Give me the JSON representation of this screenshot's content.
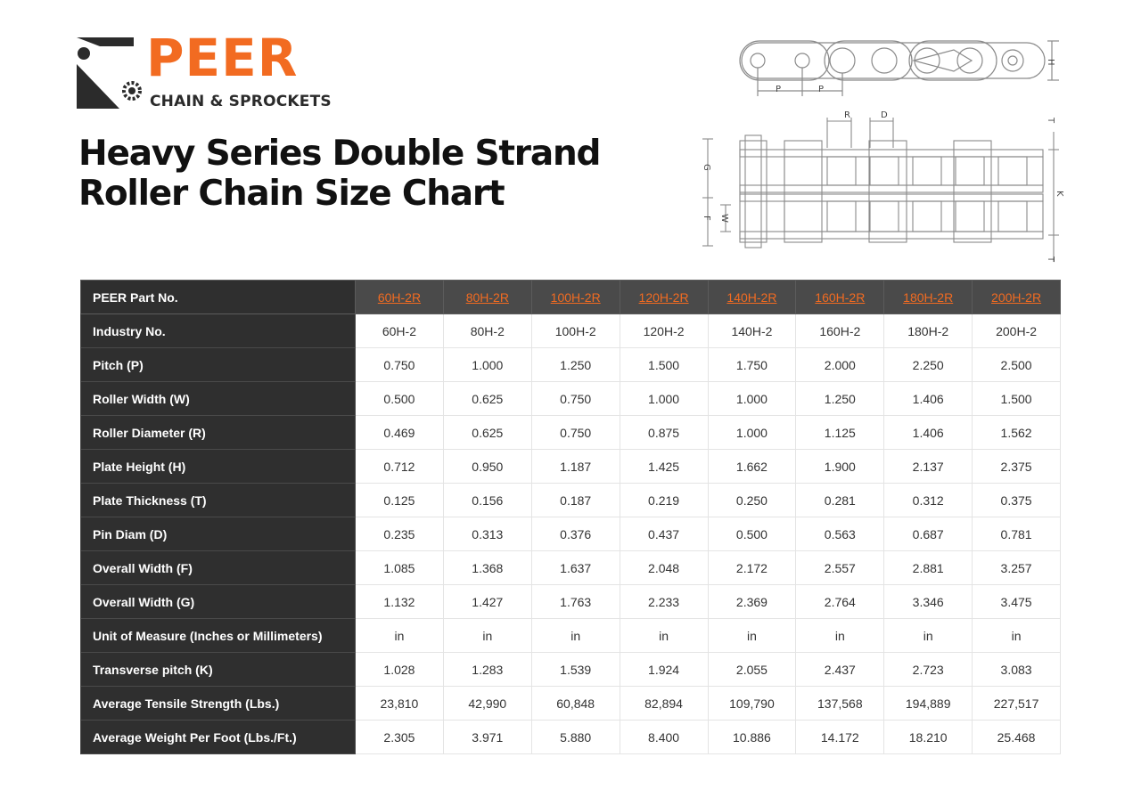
{
  "brand": {
    "name": "PEER",
    "tagline": "CHAIN & SPROCKETS",
    "colors": {
      "orange": "#f26b21",
      "dark": "#2f2f2f"
    }
  },
  "title": {
    "line1": "Heavy Series Double Strand",
    "line2": "Roller Chain Size Chart"
  },
  "diagram": {
    "labels": {
      "h": "H",
      "p1": "P",
      "p2": "P",
      "r": "R",
      "d": "D",
      "t1": "T",
      "t2": "T",
      "g": "G",
      "k": "K",
      "f": "F",
      "w": "W"
    }
  },
  "table": {
    "header_label": "PEER Part No.",
    "parts": [
      "60H-2R",
      "80H-2R",
      "100H-2R",
      "120H-2R",
      "140H-2R",
      "160H-2R",
      "180H-2R",
      "200H-2R"
    ],
    "rows": [
      {
        "label": "Industry No.",
        "values": [
          "60H-2",
          "80H-2",
          "100H-2",
          "120H-2",
          "140H-2",
          "160H-2",
          "180H-2",
          "200H-2"
        ]
      },
      {
        "label": "Pitch (P)",
        "values": [
          "0.750",
          "1.000",
          "1.250",
          "1.500",
          "1.750",
          "2.000",
          "2.250",
          "2.500"
        ]
      },
      {
        "label": "Roller Width (W)",
        "values": [
          "0.500",
          "0.625",
          "0.750",
          "1.000",
          "1.000",
          "1.250",
          "1.406",
          "1.500"
        ]
      },
      {
        "label": "Roller Diameter (R)",
        "values": [
          "0.469",
          "0.625",
          "0.750",
          "0.875",
          "1.000",
          "1.125",
          "1.406",
          "1.562"
        ]
      },
      {
        "label": "Plate Height (H)",
        "values": [
          "0.712",
          "0.950",
          "1.187",
          "1.425",
          "1.662",
          "1.900",
          "2.137",
          "2.375"
        ]
      },
      {
        "label": "Plate Thickness (T)",
        "values": [
          "0.125",
          "0.156",
          "0.187",
          "0.219",
          "0.250",
          "0.281",
          "0.312",
          "0.375"
        ]
      },
      {
        "label": "Pin Diam (D)",
        "values": [
          "0.235",
          "0.313",
          "0.376",
          "0.437",
          "0.500",
          "0.563",
          "0.687",
          "0.781"
        ]
      },
      {
        "label": "Overall Width (F)",
        "values": [
          "1.085",
          "1.368",
          "1.637",
          "2.048",
          "2.172",
          "2.557",
          "2.881",
          "3.257"
        ]
      },
      {
        "label": "Overall Width (G)",
        "values": [
          "1.132",
          "1.427",
          "1.763",
          "2.233",
          "2.369",
          "2.764",
          "3.346",
          "3.475"
        ]
      },
      {
        "label": "Unit of Measure (Inches or Millimeters)",
        "values": [
          "in",
          "in",
          "in",
          "in",
          "in",
          "in",
          "in",
          "in"
        ]
      },
      {
        "label": "Transverse pitch (K)",
        "values": [
          "1.028",
          "1.283",
          "1.539",
          "1.924",
          "2.055",
          "2.437",
          "2.723",
          "3.083"
        ]
      },
      {
        "label": "Average Tensile Strength (Lbs.)",
        "values": [
          "23,810",
          "42,990",
          "60,848",
          "82,894",
          "109,790",
          "137,568",
          "194,889",
          "227,517"
        ]
      },
      {
        "label": "Average Weight Per Foot (Lbs./Ft.)",
        "values": [
          "2.305",
          "3.971",
          "5.880",
          "8.400",
          "10.886",
          "14.172",
          "18.210",
          "25.468"
        ]
      }
    ]
  }
}
